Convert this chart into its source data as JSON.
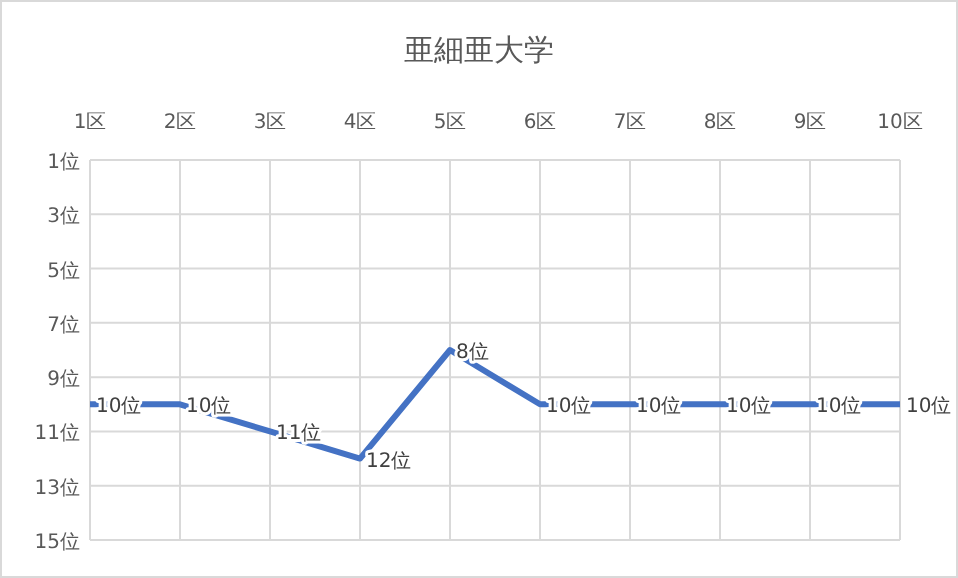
{
  "chart_data": {
    "type": "line",
    "title": "亜細亜大学",
    "categories": [
      "1区",
      "2区",
      "3区",
      "4区",
      "5区",
      "6区",
      "7区",
      "8区",
      "9区",
      "10区"
    ],
    "series": [
      {
        "color": "#4472c4",
        "values": [
          10,
          10,
          11,
          12,
          8,
          10,
          10,
          10,
          10,
          10
        ],
        "value_labels": [
          "10位",
          "10位",
          "11位",
          "12位",
          "8位",
          "10位",
          "10位",
          "10位",
          "10位",
          "10位"
        ]
      }
    ],
    "ylim": [
      15,
      1
    ],
    "yticks": [
      {
        "value": 1,
        "label": "1位"
      },
      {
        "value": 3,
        "label": "3位"
      },
      {
        "value": 5,
        "label": "5位"
      },
      {
        "value": 7,
        "label": "7位"
      },
      {
        "value": 9,
        "label": "9位"
      },
      {
        "value": 11,
        "label": "11位"
      },
      {
        "value": 13,
        "label": "13位"
      },
      {
        "value": 15,
        "label": "15位"
      }
    ],
    "grid": true,
    "marker": "none",
    "line_style": "solid"
  }
}
